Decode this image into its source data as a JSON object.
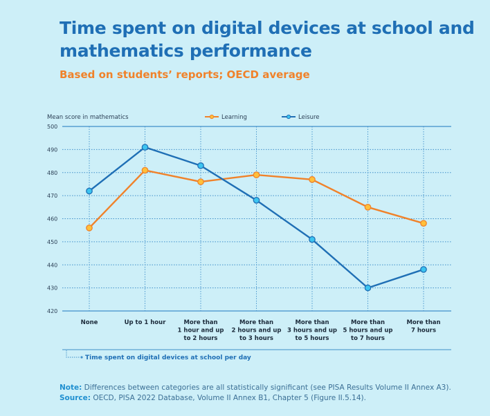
{
  "title": "Time spent on digital devices at school and mathematics performance",
  "subtitle": "Based on students’ reports; OECD average",
  "note": {
    "label": "Note:",
    "text": " Differences between categories are all statistically significant (see PISA Results Volume II Annex A3)."
  },
  "source": {
    "label": "Source:",
    "text": " OECD, PISA 2022 Database, Volume II Annex B1, Chapter 5 (Figure II.5.14)."
  },
  "colors": {
    "learning": "#f0822a",
    "leisure": "#1f6fb5",
    "point_fill_learning": "#ffc03a",
    "point_fill_leisure": "#3cc4f0",
    "grid": "#3f8fc9"
  },
  "chart_data": {
    "type": "line",
    "title": "Time spent on digital devices at school and mathematics performance",
    "subtitle": "Based on students’ reports; OECD average",
    "ylabel": "Mean score in mathematics",
    "xlabel": "Time spent on digital devices at school per day",
    "ylim": [
      420,
      500
    ],
    "yticks": [
      420,
      430,
      440,
      450,
      460,
      470,
      480,
      490,
      500
    ],
    "grid": true,
    "legend_position": "top",
    "categories": [
      [
        "None"
      ],
      [
        "Up to 1 hour"
      ],
      [
        "More than",
        "1 hour and up",
        "to 2 hours"
      ],
      [
        "More than",
        "2 hours and up",
        "to 3 hours"
      ],
      [
        "More than",
        "3 hours and up",
        "to 5 hours"
      ],
      [
        "More than",
        "5 hours and up",
        "to 7 hours"
      ],
      [
        "More than",
        "7 hours"
      ]
    ],
    "series": [
      {
        "name": "Learning",
        "values": [
          456,
          481,
          476,
          479,
          477,
          465,
          458
        ]
      },
      {
        "name": "Leisure",
        "values": [
          472,
          491,
          483,
          468,
          451,
          430,
          438
        ]
      }
    ]
  }
}
